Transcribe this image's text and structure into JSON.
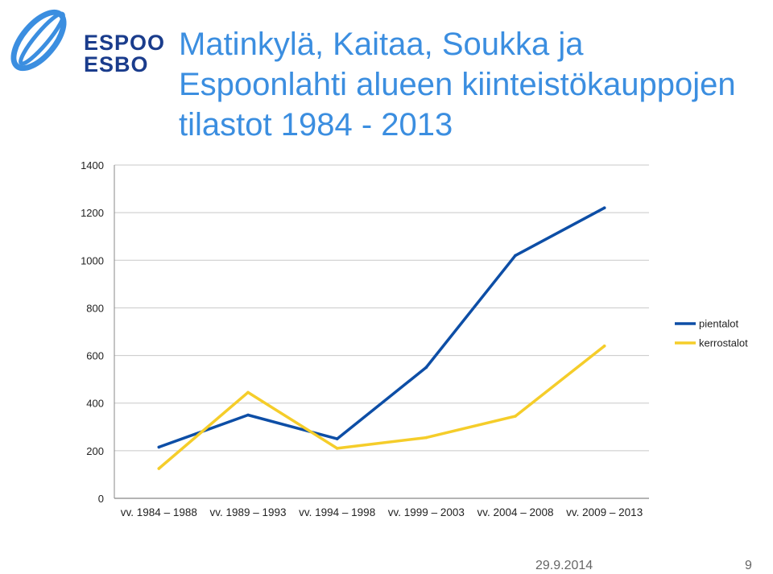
{
  "logo": {
    "line1": "ESPOO",
    "line2": "ESBO",
    "color": "#1a3c8c",
    "mark_color": "#3b8ee0"
  },
  "title_lines": [
    "Matinkylä, Kaitaa, Soukka ja",
    "Espoonlahti alueen  kiinteistökauppojen",
    "tilastot 1984 - 2013"
  ],
  "footer": {
    "date": "29.9.2014",
    "page": "9"
  },
  "chart_data": {
    "type": "line",
    "title": "Matinkylä, Kaitaa, Soukka ja Espoonlahti alueen  kiinteistökauppojen tilastot 1984 - 2013",
    "categories": [
      "vv. 1984 – 1988",
      "vv. 1989 – 1993",
      "vv. 1994 – 1998",
      "vv. 1999 – 2003",
      "vv. 2004 – 2008",
      "vv. 2009 – 2013"
    ],
    "yticks": [
      0,
      200,
      400,
      600,
      800,
      1000,
      1200,
      1400
    ],
    "ylim": [
      0,
      1400
    ],
    "grid": true,
    "legend_position": "right",
    "series": [
      {
        "name": "pientalot",
        "color": "#0d4ea6",
        "values": [
          215,
          350,
          250,
          550,
          1020,
          1220
        ]
      },
      {
        "name": "kerrostalot",
        "color": "#f5cd2a",
        "values": [
          125,
          445,
          210,
          255,
          345,
          640
        ]
      }
    ]
  }
}
